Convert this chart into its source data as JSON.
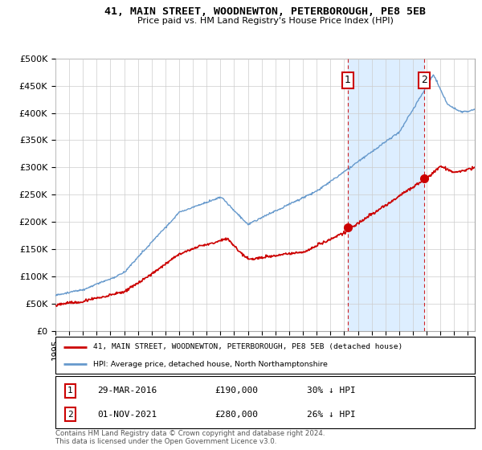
{
  "title": "41, MAIN STREET, WOODNEWTON, PETERBOROUGH, PE8 5EB",
  "subtitle": "Price paid vs. HM Land Registry's House Price Index (HPI)",
  "red_label": "41, MAIN STREET, WOODNEWTON, PETERBOROUGH, PE8 5EB (detached house)",
  "blue_label": "HPI: Average price, detached house, North Northamptonshire",
  "sale1_date": "29-MAR-2016",
  "sale1_price": 190000,
  "sale1_note": "30% ↓ HPI",
  "sale2_date": "01-NOV-2021",
  "sale2_price": 280000,
  "sale2_note": "26% ↓ HPI",
  "footer": "Contains HM Land Registry data © Crown copyright and database right 2024.\nThis data is licensed under the Open Government Licence v3.0.",
  "ylim": [
    0,
    500000
  ],
  "yticks": [
    0,
    50000,
    100000,
    150000,
    200000,
    250000,
    300000,
    350000,
    400000,
    450000,
    500000
  ],
  "ytick_labels": [
    "£0",
    "£50K",
    "£100K",
    "£150K",
    "£200K",
    "£250K",
    "£300K",
    "£350K",
    "£400K",
    "£450K",
    "£500K"
  ],
  "background_color": "#ffffff",
  "plot_bg_color": "#ffffff",
  "red_color": "#cc0000",
  "blue_color": "#6699cc",
  "shade_color": "#ddeeff",
  "sale1_year": 2016.25,
  "sale2_year": 2021.84,
  "xmin": 1995,
  "xmax": 2025.5
}
